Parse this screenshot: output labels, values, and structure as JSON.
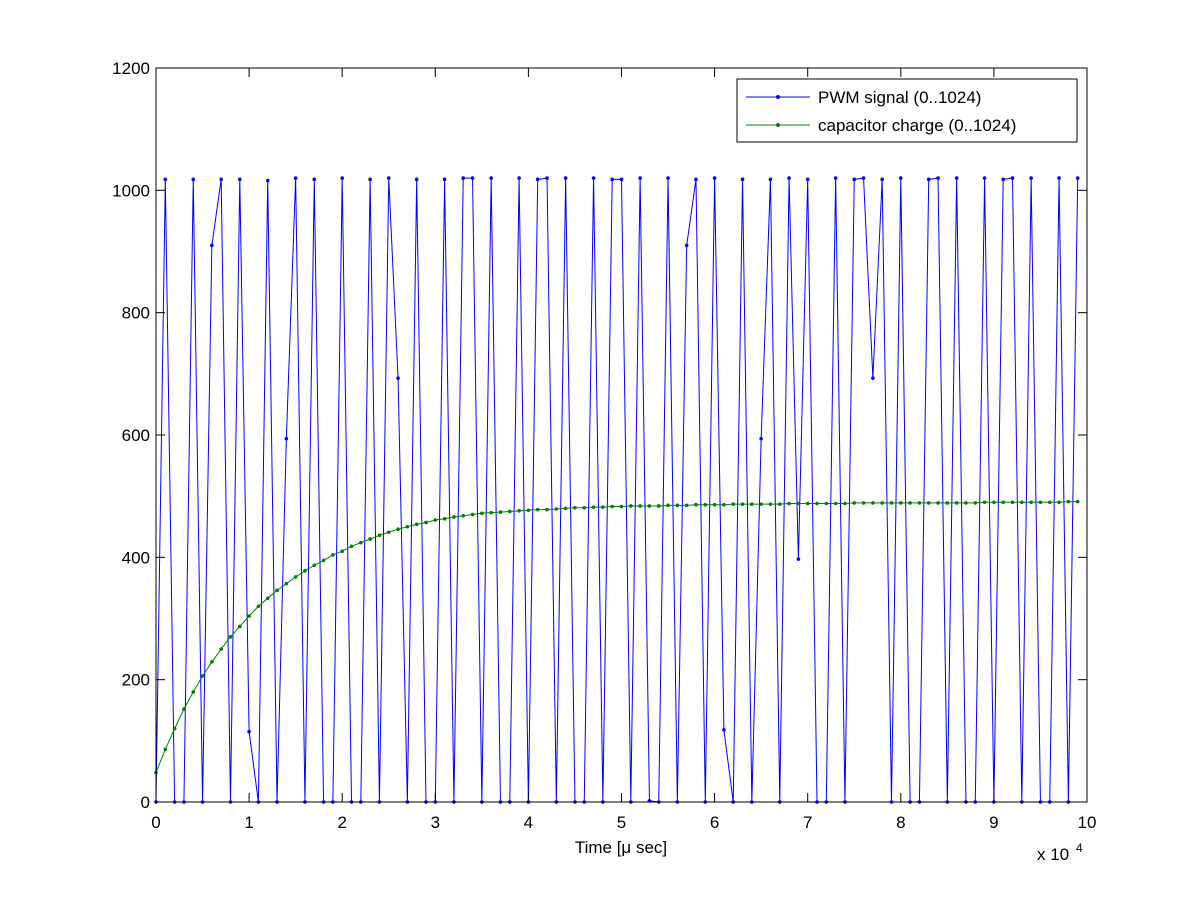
{
  "chart_data": {
    "type": "line",
    "xlabel": "Time [μ sec]",
    "x_exponent_label": "x 10",
    "x_exponent": "4",
    "ylabel": "",
    "xlim": [
      0,
      100000
    ],
    "ylim": [
      0,
      1200
    ],
    "xticks": [
      0,
      10000,
      20000,
      30000,
      40000,
      50000,
      60000,
      70000,
      80000,
      90000,
      100000
    ],
    "xtick_labels": [
      "0",
      "1",
      "2",
      "3",
      "4",
      "5",
      "6",
      "7",
      "8",
      "9",
      "10"
    ],
    "yticks": [
      0,
      200,
      400,
      600,
      800,
      1000,
      1200
    ],
    "ytick_labels": [
      "0",
      "200",
      "400",
      "600",
      "800",
      "1000",
      "1200"
    ],
    "grid": false,
    "legend_position": "top-right",
    "series": [
      {
        "name": "PWM signal (0..1024)",
        "color": "#0000ff",
        "x": [
          0,
          1000,
          2000,
          3000,
          4000,
          5000,
          6000,
          7000,
          8000,
          9000,
          10000,
          11000,
          12000,
          13000,
          14000,
          15000,
          16000,
          17000,
          18000,
          19000,
          20000,
          21000,
          22000,
          23000,
          24000,
          25000,
          26000,
          27000,
          28000,
          29000,
          30000,
          31000,
          32000,
          33000,
          34000,
          35000,
          36000,
          37000,
          38000,
          39000,
          40000,
          41000,
          42000,
          43000,
          44000,
          45000,
          46000,
          47000,
          48000,
          49000,
          50000,
          51000,
          52000,
          53000,
          54000,
          55000,
          56000,
          57000,
          58000,
          59000,
          60000,
          61000,
          62000,
          63000,
          64000,
          65000,
          66000,
          67000,
          68000,
          69000,
          70000,
          71000,
          72000,
          73000,
          74000,
          75000,
          76000,
          77000,
          78000,
          79000,
          80000,
          81000,
          82000,
          83000,
          84000,
          85000,
          86000,
          87000,
          88000,
          89000,
          90000,
          91000,
          92000,
          93000,
          94000,
          95000,
          96000,
          97000,
          98000,
          99000
        ],
        "y": [
          0,
          1018,
          0,
          0,
          1018,
          0,
          910,
          1018,
          0,
          1018,
          115,
          0,
          1016,
          0,
          594,
          1020,
          0,
          1018,
          0,
          0,
          1020,
          0,
          0,
          1018,
          0,
          1020,
          693,
          0,
          1018,
          0,
          0,
          1018,
          0,
          1020,
          1020,
          0,
          1020,
          0,
          0,
          1020,
          0,
          1018,
          1020,
          0,
          1020,
          0,
          0,
          1020,
          0,
          1018,
          1018,
          0,
          1020,
          2,
          0,
          1020,
          0,
          910,
          1018,
          0,
          1020,
          118,
          0,
          1018,
          0,
          594,
          1018,
          0,
          1020,
          397,
          1018,
          0,
          0,
          1020,
          0,
          1018,
          1020,
          693,
          1018,
          0,
          1020,
          0,
          0,
          1018,
          1020,
          0,
          1020,
          0,
          0,
          1020,
          0,
          1018,
          1020,
          0,
          1020,
          0,
          0,
          1020,
          0,
          1020
        ]
      },
      {
        "name": "capacitor charge (0..1024)",
        "color": "#008000",
        "x": [
          0,
          1000,
          2000,
          3000,
          4000,
          5000,
          6000,
          7000,
          8000,
          9000,
          10000,
          11000,
          12000,
          13000,
          14000,
          15000,
          16000,
          17000,
          18000,
          19000,
          20000,
          21000,
          22000,
          23000,
          24000,
          25000,
          26000,
          27000,
          28000,
          29000,
          30000,
          31000,
          32000,
          33000,
          34000,
          35000,
          36000,
          37000,
          38000,
          39000,
          40000,
          41000,
          42000,
          43000,
          44000,
          45000,
          46000,
          47000,
          48000,
          49000,
          50000,
          51000,
          52000,
          53000,
          54000,
          55000,
          56000,
          57000,
          58000,
          59000,
          60000,
          61000,
          62000,
          63000,
          64000,
          65000,
          66000,
          67000,
          68000,
          69000,
          70000,
          71000,
          72000,
          73000,
          74000,
          75000,
          76000,
          77000,
          78000,
          79000,
          80000,
          81000,
          82000,
          83000,
          84000,
          85000,
          86000,
          87000,
          88000,
          89000,
          90000,
          91000,
          92000,
          93000,
          94000,
          95000,
          96000,
          97000,
          98000,
          99000
        ],
        "y": [
          48,
          86,
          120,
          152,
          180,
          206,
          229,
          250,
          270,
          287,
          304,
          320,
          333,
          346,
          357,
          368,
          378,
          387,
          395,
          404,
          410,
          418,
          424,
          430,
          436,
          441,
          446,
          450,
          454,
          457,
          461,
          463,
          466,
          468,
          470,
          472,
          473,
          474,
          475,
          476,
          477,
          478,
          478,
          479,
          480,
          481,
          481,
          482,
          482,
          483,
          483,
          484,
          484,
          484,
          484,
          485,
          485,
          485,
          486,
          486,
          486,
          486,
          487,
          487,
          487,
          487,
          487,
          487,
          488,
          488,
          488,
          488,
          488,
          488,
          488,
          489,
          489,
          489,
          489,
          489,
          489,
          489,
          489,
          489,
          489,
          489,
          489,
          489,
          489,
          490,
          490,
          490,
          490,
          490,
          490,
          490,
          490,
          490,
          491,
          491
        ]
      }
    ]
  }
}
